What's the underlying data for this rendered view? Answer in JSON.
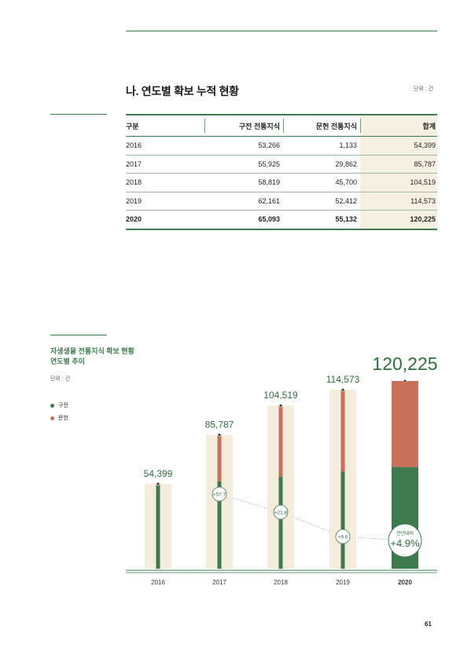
{
  "section": {
    "title": "나. 연도별 확보 누적 현황",
    "unit": "단위 : 건"
  },
  "table": {
    "headers": [
      "구분",
      "구전 전통지식",
      "문헌 전통지식",
      "합계"
    ],
    "rows": [
      [
        "2016",
        "53,266",
        "1,133",
        "54,399"
      ],
      [
        "2017",
        "55,925",
        "29,862",
        "85,787"
      ],
      [
        "2018",
        "58,819",
        "45,700",
        "104,519"
      ],
      [
        "2019",
        "62,161",
        "52,412",
        "114,573"
      ],
      [
        "2020",
        "65,093",
        "55,132",
        "120,225"
      ]
    ]
  },
  "chart_side": {
    "title_line1": "자생생물 전통지식 확보 현황",
    "title_line2": "연도별 추이",
    "unit": "단위 : 건",
    "legend_oral": "구전",
    "legend_doc": "문헌"
  },
  "chart_data": {
    "type": "bar",
    "categories": [
      "2016",
      "2017",
      "2018",
      "2019",
      "2020"
    ],
    "series": [
      {
        "name": "구전",
        "values": [
          53266,
          55925,
          58819,
          62161,
          65093
        ]
      },
      {
        "name": "문헌",
        "values": [
          1133,
          29862,
          45700,
          52412,
          55132
        ]
      }
    ],
    "totals": [
      54399,
      85787,
      104519,
      114573,
      120225
    ],
    "total_labels": [
      "54,399",
      "85,787",
      "104,519",
      "114,573",
      "120,225"
    ],
    "growth_labels": [
      "",
      "+57.7",
      "+21.8",
      "+9.6",
      "+4.9%"
    ],
    "growth_caption": "전년대비",
    "colors": {
      "oral": "#3f7a4e",
      "doc": "#c8705a",
      "track": "#f4ecdc"
    }
  },
  "page_number": "61"
}
